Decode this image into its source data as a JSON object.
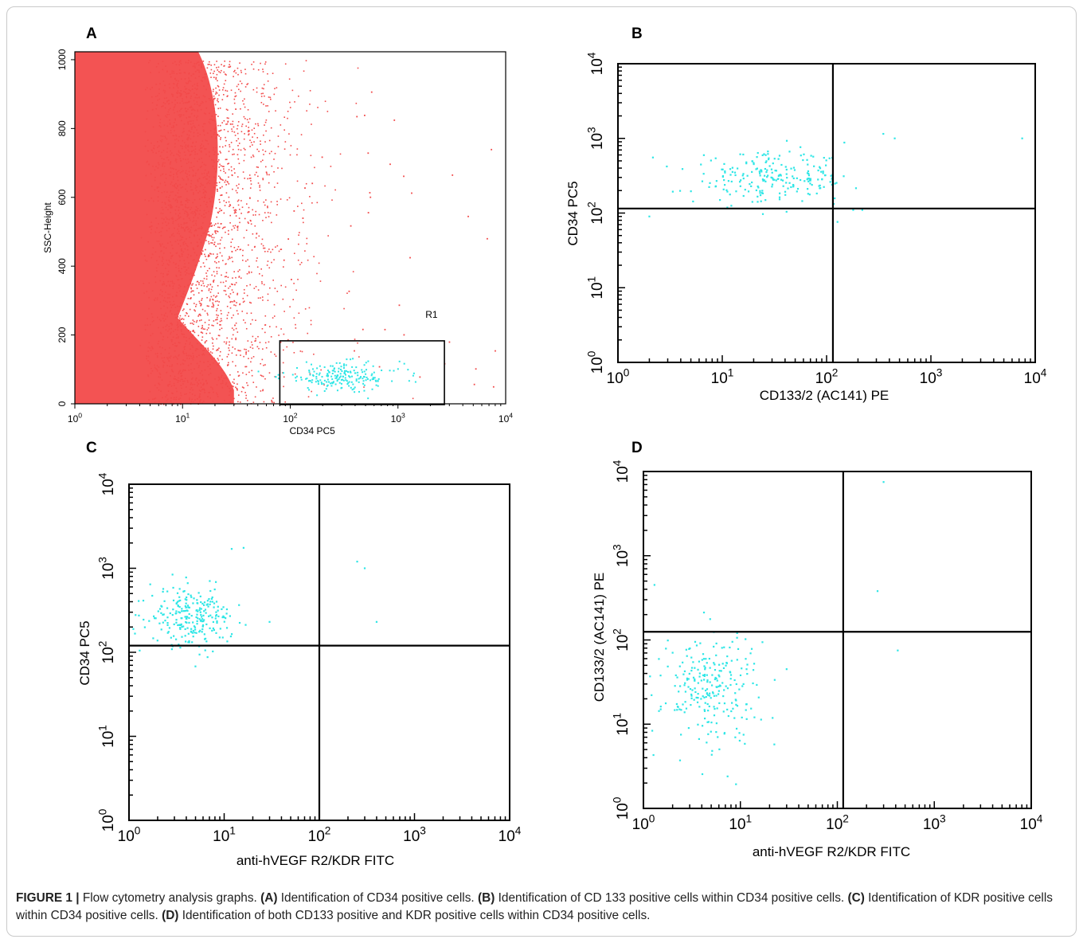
{
  "figure": {
    "caption": {
      "prefix": "FIGURE 1 |",
      "text0": " Flow cytometry analysis graphs. ",
      "A": "(A)",
      "text1": " Identification of CD34 positive cells. ",
      "B": "(B)",
      "text2": " Identification of CD 133 positive cells within CD34 positive cells. ",
      "C": "(C)",
      "text3": " Identification of KDR positive cells within CD34 positive cells. ",
      "D": "(D)",
      "text4": " Identification of both CD133 positive and KDR positive cells within CD34 positive cells."
    }
  },
  "colors": {
    "bulk": "#f24a4a",
    "gated": "#2ee6e6",
    "axis": "#000000"
  },
  "chart_data": [
    {
      "panel": "A",
      "type": "scatter",
      "xlabel": "CD34 PC5",
      "ylabel": "SSC-Height",
      "xscale": "log",
      "xlim": [
        1,
        10000
      ],
      "ylim": [
        0,
        1023
      ],
      "y_ticks": [
        "0",
        "200",
        "400",
        "600",
        "800",
        "1000"
      ],
      "gate": {
        "label": "R1",
        "x": [
          80,
          2700
        ],
        "y": [
          0,
          183
        ]
      },
      "series": [
        {
          "color": "#f24a4a",
          "description_points": "dense population x 10^0–10^1.5, y 0–1000"
        },
        {
          "color": "#2ee6e6",
          "n": 210,
          "x_center": 300,
          "y_center": 78
        }
      ]
    },
    {
      "panel": "B",
      "type": "scatter",
      "xlabel": "CD133/2 (AC141) PE",
      "ylabel": "CD34 PC5",
      "xscale": "log",
      "yscale": "log",
      "xlim": [
        1,
        10000
      ],
      "ylim": [
        1,
        10000
      ],
      "quadrant": {
        "x": 115,
        "y": 115
      },
      "series": [
        {
          "color": "#2ee6e6",
          "n": 230,
          "x_center": 30,
          "y_center": 290
        }
      ]
    },
    {
      "panel": "C",
      "type": "scatter",
      "xlabel": "anti-hVEGF R2/KDR FITC",
      "ylabel": "CD34 PC5",
      "xscale": "log",
      "yscale": "log",
      "xlim": [
        1,
        10000
      ],
      "ylim": [
        1,
        10000
      ],
      "quadrant": {
        "x": 100,
        "y": 120
      },
      "series": [
        {
          "color": "#2ee6e6",
          "n": 250,
          "x_center": 4.5,
          "y_center": 260
        }
      ]
    },
    {
      "panel": "D",
      "type": "scatter",
      "xlabel": "anti-hVEGF R2/KDR FITC",
      "ylabel": "CD133/2 (AC141) PE",
      "xscale": "log",
      "yscale": "log",
      "xlim": [
        1,
        10000
      ],
      "ylim": [
        1,
        10000
      ],
      "quadrant": {
        "x": 115,
        "y": 125
      },
      "series": [
        {
          "color": "#2ee6e6",
          "n": 250,
          "x_center": 5,
          "y_center": 28
        }
      ]
    }
  ],
  "panels": {
    "A": {
      "letter": "A",
      "xlabel": "CD34 PC5",
      "ylabel": "SSC-Height",
      "gate_label": "R1"
    },
    "B": {
      "letter": "B",
      "xlabel": "CD133/2 (AC141) PE",
      "ylabel": "CD34 PC5"
    },
    "C": {
      "letter": "C",
      "xlabel": "anti-hVEGF R2/KDR FITC",
      "ylabel": "CD34 PC5"
    },
    "D": {
      "letter": "D",
      "xlabel": "anti-hVEGF R2/KDR FITC",
      "ylabel": "CD133/2 (AC141) PE"
    }
  }
}
